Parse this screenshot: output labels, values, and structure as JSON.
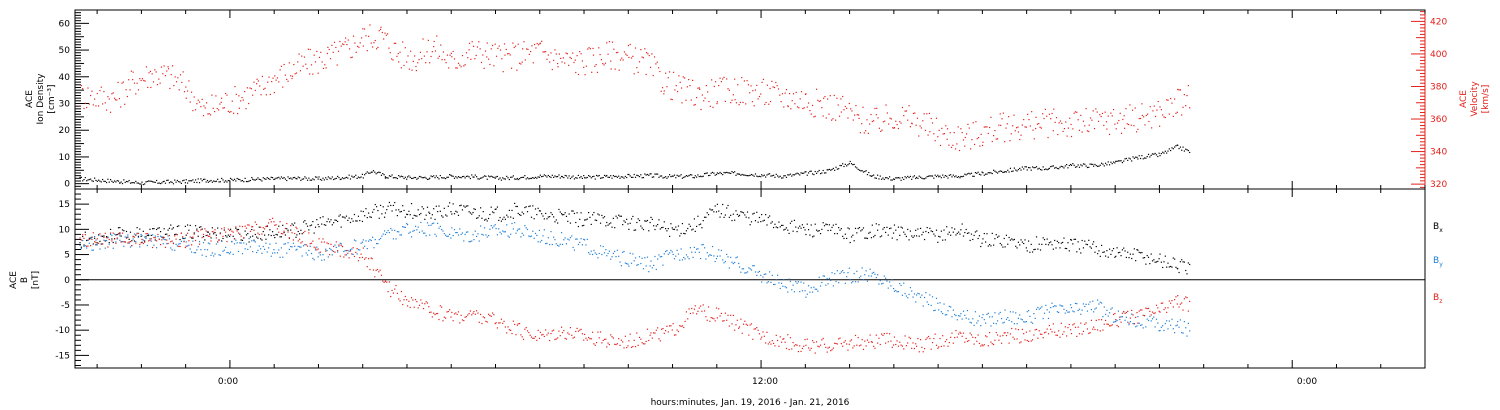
{
  "colors": {
    "black": "#000000",
    "red": "#e3201b",
    "blue": "#1f7fd6"
  },
  "xaxis": {
    "label": "hours:minutes, Jan. 19, 2016 - Jan. 21, 2016",
    "tick_labels": [
      "0:00",
      "12:00",
      "0:00"
    ],
    "range_hours": [
      -3.5,
      27.0
    ]
  },
  "chart_data": [
    {
      "type": "scatter",
      "title": "",
      "ylabel": [
        "ACE",
        "Ion Density",
        "[cm⁻³]"
      ],
      "ylabel_right": [
        "ACE",
        "Velocity",
        "[km/s]"
      ],
      "ylim": [
        -2,
        65
      ],
      "ylim_right": [
        317,
        427
      ],
      "yticks": [
        0,
        10,
        20,
        30,
        40,
        50,
        60
      ],
      "yticks_right": [
        320,
        340,
        360,
        380,
        400,
        420
      ],
      "grid": false,
      "series": [
        {
          "axis": "left",
          "color": "black",
          "x": [
            -3.4,
            -2.5,
            -2.0,
            -1.5,
            -1.0,
            -0.5,
            0.0,
            0.5,
            1.0,
            1.5,
            2.0,
            2.5,
            3.0,
            3.2,
            3.5,
            4.0,
            4.5,
            5.0,
            5.5,
            6.0,
            6.5,
            7.0,
            7.5,
            8.0,
            8.5,
            9.0,
            9.5,
            10.0,
            10.5,
            11.0,
            11.5,
            12.0,
            12.5,
            13.0,
            13.5,
            14.0,
            14.5,
            15.0,
            15.5,
            16.0,
            16.5,
            17.0,
            17.5,
            18.0,
            18.5,
            19.0,
            19.5,
            20.0,
            20.5,
            21.0,
            21.4,
            21.7
          ],
          "y": [
            2,
            1,
            0.5,
            0.8,
            1,
            1.5,
            1.5,
            1.8,
            2,
            2.2,
            2,
            2.5,
            3,
            5,
            3,
            2.5,
            2.5,
            3,
            2.8,
            2.2,
            2.5,
            3,
            3,
            2.5,
            2.8,
            3,
            3.2,
            2.8,
            3,
            4,
            4,
            3.5,
            3,
            4,
            5,
            8,
            3,
            2,
            2.5,
            3,
            3,
            4,
            5,
            6,
            6,
            7,
            7,
            8,
            10,
            11,
            14,
            12
          ]
        },
        {
          "axis": "right",
          "color": "red",
          "x": [
            -3.4,
            -2.6,
            -2.2,
            -1.8,
            -1.4,
            -1.0,
            -0.6,
            -0.2,
            0.2,
            0.6,
            1.0,
            1.4,
            1.8,
            2.2,
            2.6,
            3.0,
            3.4,
            3.8,
            4.2,
            4.6,
            5.0,
            5.4,
            5.8,
            6.2,
            6.6,
            7.0,
            7.4,
            7.8,
            8.2,
            8.6,
            9.0,
            9.4,
            9.8,
            10.2,
            10.6,
            11.0,
            11.4,
            11.8,
            12.2,
            12.6,
            13.0,
            13.4,
            13.8,
            14.2,
            14.6,
            15.0,
            15.4,
            15.8,
            16.2,
            16.6,
            17.0,
            17.4,
            17.8,
            18.2,
            18.6,
            19.0,
            19.4,
            19.8,
            20.2,
            20.6,
            21.0,
            21.4,
            21.7
          ],
          "y": [
            375,
            373,
            383,
            388,
            387,
            380,
            365,
            370,
            373,
            378,
            385,
            390,
            395,
            398,
            403,
            410,
            412,
            400,
            398,
            405,
            395,
            402,
            400,
            398,
            400,
            402,
            397,
            395,
            397,
            400,
            398,
            395,
            383,
            378,
            375,
            377,
            378,
            377,
            376,
            374,
            372,
            369,
            367,
            360,
            358,
            362,
            360,
            355,
            350,
            349,
            352,
            355,
            356,
            357,
            358,
            357,
            358,
            359,
            360,
            362,
            364,
            370,
            375
          ]
        }
      ]
    },
    {
      "type": "scatter",
      "title": "",
      "ylabel": [
        "ACE",
        "B",
        "[nT]"
      ],
      "ylim": [
        -17.5,
        18
      ],
      "yticks": [
        -15,
        -10,
        -5,
        0,
        5,
        10,
        15
      ],
      "grid": false,
      "zero_line": true,
      "legend": [
        "B",
        "B",
        "B"
      ],
      "legend_subscripts": [
        "x",
        "y",
        "z"
      ],
      "legend_placement": "right",
      "series": [
        {
          "name": "Bx",
          "color": "black",
          "x": [
            -3.4,
            -2.5,
            -2.0,
            -1.5,
            -1.0,
            -0.5,
            0.0,
            0.5,
            1.0,
            1.5,
            2.0,
            2.5,
            3.0,
            3.5,
            4.0,
            4.5,
            5.0,
            5.5,
            6.0,
            6.5,
            7.0,
            7.5,
            8.0,
            8.5,
            9.0,
            9.5,
            10.0,
            10.5,
            11.0,
            11.5,
            12.0,
            12.5,
            13.0,
            13.5,
            14.0,
            14.5,
            15.0,
            15.5,
            16.0,
            16.5,
            17.0,
            17.5,
            18.0,
            18.5,
            19.0,
            19.5,
            20.0,
            20.5,
            21.0,
            21.4,
            21.7
          ],
          "y": [
            8,
            9,
            9,
            9.5,
            9.5,
            9.5,
            9,
            9,
            9.5,
            10,
            11,
            12,
            13,
            14,
            14,
            13,
            14,
            13.5,
            13,
            14,
            13,
            12.5,
            12,
            12,
            11.5,
            11,
            10,
            11,
            14,
            13,
            12,
            11,
            10,
            10,
            9,
            10,
            9.5,
            9,
            9,
            10,
            8,
            8,
            7,
            7.5,
            7,
            6.5,
            5.5,
            5,
            4,
            3,
            2
          ]
        },
        {
          "name": "By",
          "color": "blue",
          "x": [
            -3.4,
            -2.5,
            -2.0,
            -1.5,
            -1.0,
            -0.5,
            0.0,
            0.5,
            1.0,
            1.5,
            2.0,
            2.5,
            3.0,
            3.5,
            4.0,
            4.5,
            5.0,
            5.5,
            6.0,
            6.5,
            7.0,
            7.5,
            8.0,
            8.5,
            9.0,
            9.5,
            10.0,
            10.5,
            11.0,
            11.5,
            12.0,
            12.5,
            13.0,
            13.5,
            14.0,
            14.5,
            15.0,
            15.5,
            16.0,
            16.5,
            17.0,
            17.5,
            18.0,
            18.5,
            19.0,
            19.5,
            20.0,
            20.5,
            21.0,
            21.4,
            21.7
          ],
          "y": [
            7,
            8,
            8,
            7.5,
            7,
            6,
            6.5,
            7,
            6,
            6,
            5,
            6,
            7,
            9,
            10,
            10,
            9.5,
            9,
            10,
            10,
            9,
            8,
            7,
            5,
            4,
            3,
            5,
            6,
            5,
            3,
            1,
            -1,
            -2,
            0,
            1,
            1,
            -1,
            -3,
            -5,
            -7,
            -8,
            -7,
            -7.5,
            -6,
            -6,
            -5,
            -7,
            -8,
            -9,
            -9,
            -10
          ]
        },
        {
          "name": "Bz",
          "color": "red",
          "x": [
            -3.4,
            -2.5,
            -2.0,
            -1.5,
            -1.0,
            -0.5,
            0.0,
            0.5,
            1.0,
            1.5,
            2.0,
            2.5,
            3.0,
            3.2,
            3.5,
            4.0,
            4.5,
            5.0,
            5.5,
            6.0,
            6.5,
            7.0,
            7.5,
            8.0,
            8.5,
            9.0,
            9.5,
            10.0,
            10.5,
            11.0,
            11.5,
            12.0,
            12.5,
            13.0,
            13.5,
            14.0,
            14.5,
            15.0,
            15.5,
            16.0,
            16.5,
            17.0,
            17.5,
            18.0,
            18.5,
            19.0,
            19.5,
            20.0,
            20.5,
            21.0,
            21.4,
            21.7
          ],
          "y": [
            8,
            8,
            8,
            8,
            8,
            9,
            9,
            10,
            11,
            9,
            7,
            6,
            5,
            3,
            -1,
            -4,
            -6,
            -7,
            -7,
            -8,
            -10,
            -11,
            -10,
            -11,
            -12,
            -12,
            -11,
            -10,
            -6,
            -7,
            -9,
            -11,
            -12,
            -13,
            -13,
            -12.5,
            -12,
            -12,
            -13,
            -12,
            -11,
            -12,
            -11,
            -11,
            -10,
            -10,
            -9,
            -8,
            -7,
            -6,
            -4,
            -5
          ]
        }
      ]
    }
  ]
}
